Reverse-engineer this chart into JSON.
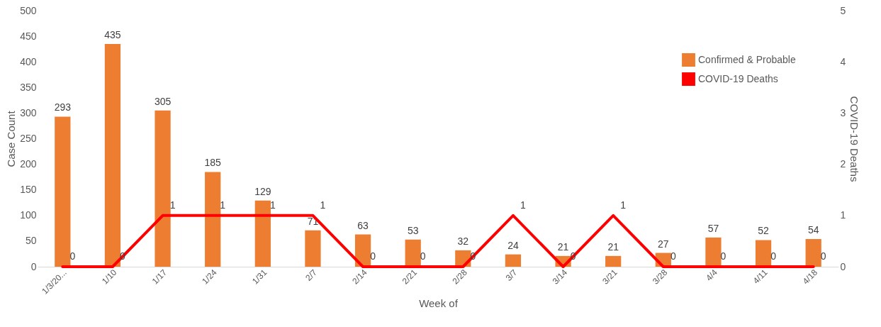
{
  "chart_data": {
    "type": "bar",
    "categories": [
      "1/3/20...",
      "1/10",
      "1/17",
      "1/24",
      "1/31",
      "2/7",
      "2/14",
      "2/21",
      "2/28",
      "3/7",
      "3/14",
      "3/21",
      "3/28",
      "4/4",
      "4/11",
      "4/18"
    ],
    "series": [
      {
        "name": "Confirmed & Probable",
        "color": "#ed7d31",
        "values": [
          293,
          435,
          305,
          185,
          129,
          71,
          63,
          53,
          32,
          24,
          21,
          21,
          27,
          57,
          52,
          54
        ]
      },
      {
        "name": "COVID-19 Deaths",
        "type": "line",
        "axis": "y2",
        "color": "#ff0000",
        "values": [
          0,
          0,
          1,
          1,
          1,
          1,
          0,
          0,
          0,
          1,
          0,
          1,
          0,
          0,
          0,
          0
        ]
      }
    ],
    "xlabel": "Week of",
    "ylabel": "Case Count",
    "y2label": "COVID-19 Deaths",
    "ylim": [
      0,
      500
    ],
    "yticks": [
      0,
      50,
      100,
      150,
      200,
      250,
      300,
      350,
      400,
      450,
      500
    ],
    "y2lim": [
      0,
      5
    ],
    "y2ticks": [
      0,
      1,
      2,
      3,
      4,
      5
    ],
    "data_labels": true,
    "legend": "top right"
  }
}
